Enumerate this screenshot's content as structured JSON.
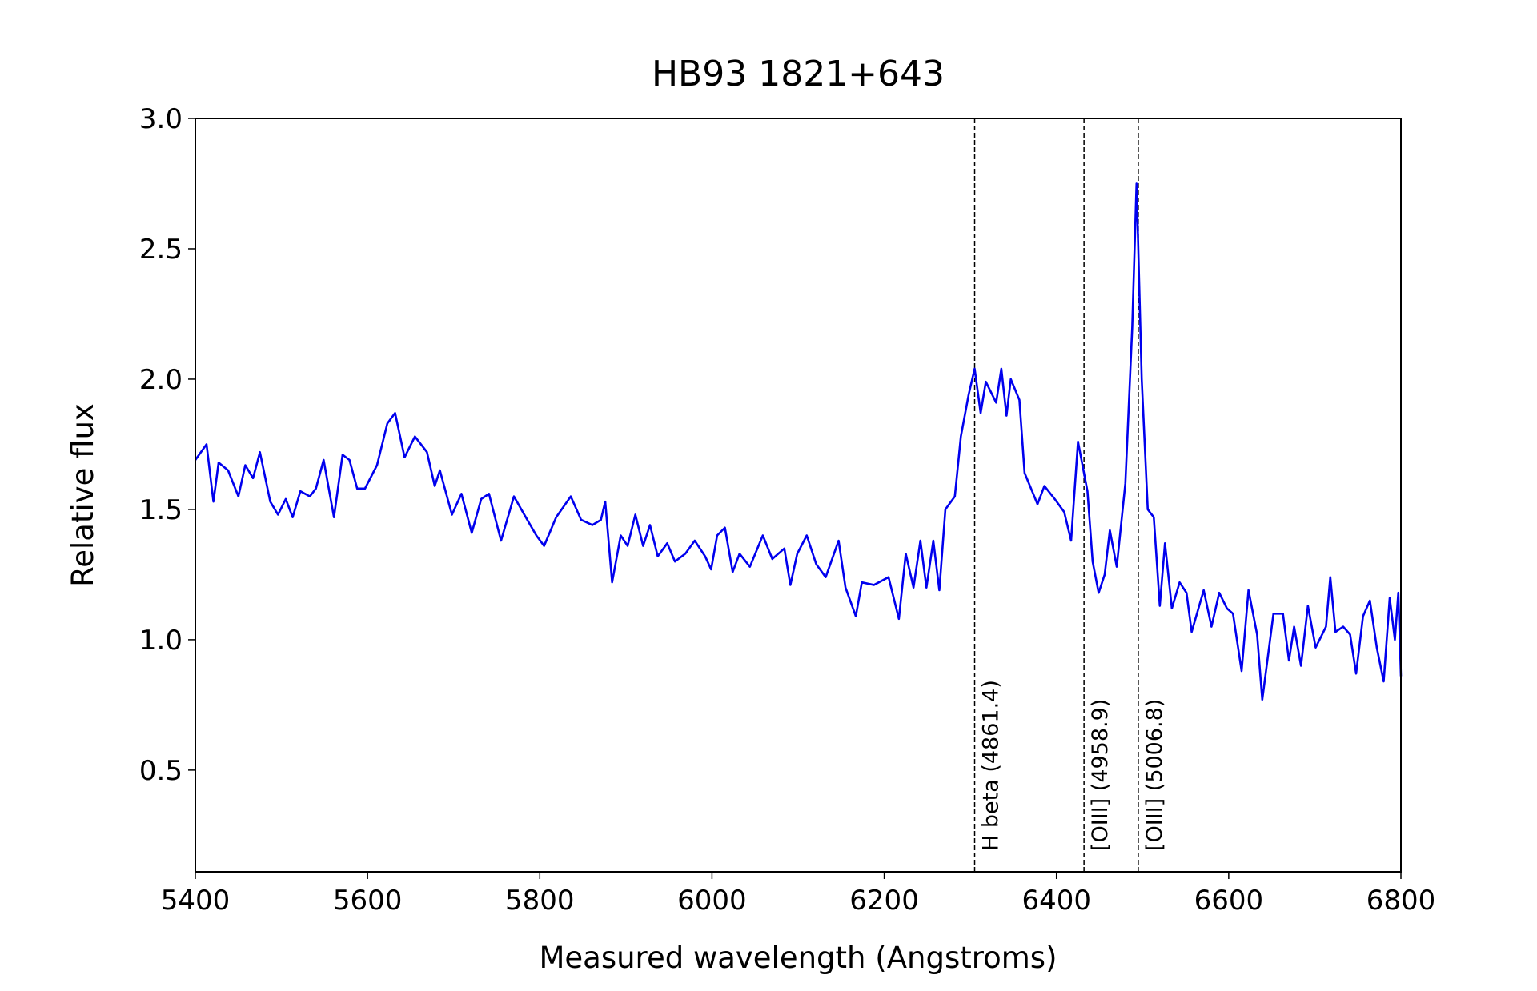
{
  "chart_data": {
    "type": "line",
    "title": "HB93 1821+643",
    "xlabel": "Measured wavelength (Angstroms)",
    "ylabel": "Relative flux",
    "xlim": [
      5400,
      6800
    ],
    "ylim": [
      0.11,
      3.0
    ],
    "xticks": [
      5400,
      5600,
      5800,
      6000,
      6200,
      6400,
      6600,
      6800
    ],
    "yticks": [
      0.5,
      {
        "value": 1,
        "label": "1.0"
      },
      1.5,
      {
        "value": 2,
        "label": "2.0"
      },
      2.5,
      {
        "value": 3,
        "label": "3.0"
      }
    ],
    "lines": [
      {
        "x": 6305,
        "label": "H beta (4861.4)"
      },
      {
        "x": 6432,
        "label": "[OIII] (4958.9)"
      },
      {
        "x": 6495,
        "label": "[OIII] (5006.8)"
      }
    ],
    "series": [
      {
        "color": "#0000ee",
        "x": [
          5400,
          5413,
          5421,
          5427,
          5438,
          5450,
          5458,
          5467,
          5475,
          5487,
          5496,
          5505,
          5513,
          5522,
          5533,
          5540,
          5549,
          5561,
          5571,
          5579,
          5588,
          5597,
          5611,
          5623,
          5632,
          5643,
          5655,
          5669,
          5678,
          5684,
          5698,
          5709,
          5721,
          5732,
          5741,
          5755,
          5770,
          5782,
          5796,
          5805,
          5819,
          5836,
          5848,
          5861,
          5871,
          5876,
          5884,
          5894,
          5902,
          5911,
          5920,
          5928,
          5937,
          5948,
          5957,
          5969,
          5980,
          5992,
          5999,
          6006,
          6015,
          6024,
          6032,
          6044,
          6059,
          6070,
          6084,
          6091,
          6099,
          6110,
          6121,
          6132,
          6147,
          6155,
          6167,
          6174,
          6188,
          6205,
          6217,
          6225,
          6234,
          6242,
          6249,
          6257,
          6264,
          6271,
          6282,
          6289,
          6298,
          6305,
          6312,
          6318,
          6330,
          6336,
          6342,
          6347,
          6357,
          6363,
          6378,
          6386,
          6398,
          6409,
          6417,
          6425,
          6436,
          6442,
          6449,
          6456,
          6462,
          6470,
          6480,
          6488,
          6493,
          6499,
          6506,
          6513,
          6520,
          6526,
          6534,
          6543,
          6551,
          6557,
          6571,
          6580,
          6589,
          6598,
          6605,
          6615,
          6623,
          6633,
          6639,
          6652,
          6663,
          6670,
          6676,
          6684,
          6692,
          6701,
          6713,
          6718,
          6724,
          6733,
          6741,
          6748,
          6756,
          6764,
          6772,
          6780,
          6787,
          6793,
          6797,
          6800
        ],
        "values": [
          1.69,
          1.75,
          1.53,
          1.68,
          1.65,
          1.55,
          1.67,
          1.62,
          1.72,
          1.53,
          1.48,
          1.54,
          1.47,
          1.57,
          1.55,
          1.58,
          1.69,
          1.47,
          1.71,
          1.69,
          1.58,
          1.58,
          1.67,
          1.83,
          1.87,
          1.7,
          1.78,
          1.72,
          1.59,
          1.65,
          1.48,
          1.56,
          1.41,
          1.54,
          1.56,
          1.38,
          1.55,
          1.48,
          1.4,
          1.36,
          1.47,
          1.55,
          1.46,
          1.44,
          1.46,
          1.53,
          1.22,
          1.4,
          1.36,
          1.48,
          1.36,
          1.44,
          1.32,
          1.37,
          1.3,
          1.33,
          1.38,
          1.32,
          1.27,
          1.4,
          1.43,
          1.26,
          1.33,
          1.28,
          1.4,
          1.31,
          1.35,
          1.21,
          1.33,
          1.4,
          1.29,
          1.24,
          1.38,
          1.2,
          1.09,
          1.22,
          1.21,
          1.24,
          1.08,
          1.33,
          1.2,
          1.38,
          1.2,
          1.38,
          1.19,
          1.5,
          1.55,
          1.78,
          1.94,
          2.04,
          1.87,
          1.99,
          1.91,
          2.04,
          1.86,
          2.0,
          1.92,
          1.64,
          1.52,
          1.59,
          1.54,
          1.49,
          1.38,
          1.76,
          1.57,
          1.3,
          1.18,
          1.25,
          1.42,
          1.28,
          1.6,
          2.2,
          2.75,
          2.0,
          1.5,
          1.47,
          1.13,
          1.37,
          1.12,
          1.22,
          1.18,
          1.03,
          1.19,
          1.05,
          1.18,
          1.12,
          1.1,
          0.88,
          1.19,
          1.02,
          0.77,
          1.1,
          1.1,
          0.92,
          1.05,
          0.9,
          1.13,
          0.97,
          1.05,
          1.24,
          1.03,
          1.05,
          1.02,
          0.87,
          1.09,
          1.15,
          0.97,
          0.84,
          1.16,
          1.0,
          1.18,
          0.86
        ]
      }
    ]
  }
}
